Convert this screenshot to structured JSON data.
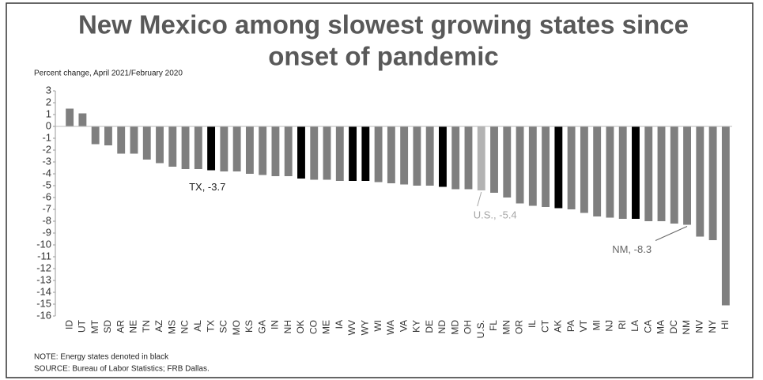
{
  "chart_data": {
    "type": "bar",
    "title": [
      "New Mexico among slowest growing states since",
      "onset of pandemic"
    ],
    "subtitle": "Percent change, April 2021/February 2020",
    "categories": [
      "ID",
      "UT",
      "MT",
      "SD",
      "AR",
      "NE",
      "TN",
      "AZ",
      "MS",
      "NC",
      "AL",
      "TX",
      "SC",
      "MO",
      "KS",
      "GA",
      "IN",
      "NH",
      "OK",
      "CO",
      "ME",
      "IA",
      "WV",
      "WY",
      "WI",
      "WA",
      "VA",
      "KY",
      "DE",
      "ND",
      "MD",
      "OH",
      "U.S.",
      "FL",
      "MN",
      "OR",
      "IL",
      "CT",
      "AK",
      "PA",
      "VT",
      "MI",
      "NJ",
      "RI",
      "LA",
      "CA",
      "MA",
      "DC",
      "NM",
      "NV",
      "NY",
      "HI"
    ],
    "values": [
      1.5,
      1.1,
      -1.5,
      -1.6,
      -2.3,
      -2.3,
      -2.8,
      -3.1,
      -3.4,
      -3.6,
      -3.6,
      -3.7,
      -3.8,
      -3.8,
      -4.0,
      -4.1,
      -4.2,
      -4.2,
      -4.4,
      -4.5,
      -4.5,
      -4.6,
      -4.6,
      -4.6,
      -4.7,
      -4.8,
      -4.9,
      -5.0,
      -5.0,
      -5.1,
      -5.3,
      -5.3,
      -5.4,
      -5.6,
      -6.0,
      -6.5,
      -6.7,
      -6.8,
      -6.9,
      -7.0,
      -7.3,
      -7.6,
      -7.7,
      -7.8,
      -7.8,
      -8.0,
      -8.0,
      -8.2,
      -8.3,
      -9.3,
      -9.6,
      -15.1
    ],
    "colors": [
      "#7f7f7f",
      "#7f7f7f",
      "#7f7f7f",
      "#7f7f7f",
      "#7f7f7f",
      "#7f7f7f",
      "#7f7f7f",
      "#7f7f7f",
      "#7f7f7f",
      "#7f7f7f",
      "#7f7f7f",
      "#000000",
      "#7f7f7f",
      "#7f7f7f",
      "#7f7f7f",
      "#7f7f7f",
      "#7f7f7f",
      "#7f7f7f",
      "#000000",
      "#7f7f7f",
      "#7f7f7f",
      "#7f7f7f",
      "#000000",
      "#000000",
      "#7f7f7f",
      "#7f7f7f",
      "#7f7f7f",
      "#7f7f7f",
      "#7f7f7f",
      "#000000",
      "#7f7f7f",
      "#7f7f7f",
      "#b3b3b3",
      "#7f7f7f",
      "#7f7f7f",
      "#7f7f7f",
      "#7f7f7f",
      "#7f7f7f",
      "#000000",
      "#7f7f7f",
      "#7f7f7f",
      "#7f7f7f",
      "#7f7f7f",
      "#7f7f7f",
      "#000000",
      "#7f7f7f",
      "#7f7f7f",
      "#7f7f7f",
      "#7f7f7f",
      "#7f7f7f",
      "#7f7f7f",
      "#7f7f7f"
    ],
    "ylim": [
      -16,
      3
    ],
    "yticks": [
      3,
      2,
      1,
      0,
      -1,
      -2,
      -3,
      -4,
      -5,
      -6,
      -7,
      -8,
      -9,
      -10,
      -11,
      -12,
      -13,
      -14,
      -15,
      -16
    ],
    "annotations": [
      {
        "text": "TX, -3.7",
        "category": "TX",
        "color": "#222222"
      },
      {
        "text": "U.S., -5.4",
        "category": "U.S.",
        "color": "#a6a6a6"
      },
      {
        "text": "NM, -8.3",
        "category": "NM",
        "color": "#666666"
      }
    ],
    "notes": [
      "NOTE: Energy states denoted in black",
      "SOURCE: Bureau of Labor Statistics; FRB Dallas."
    ]
  }
}
